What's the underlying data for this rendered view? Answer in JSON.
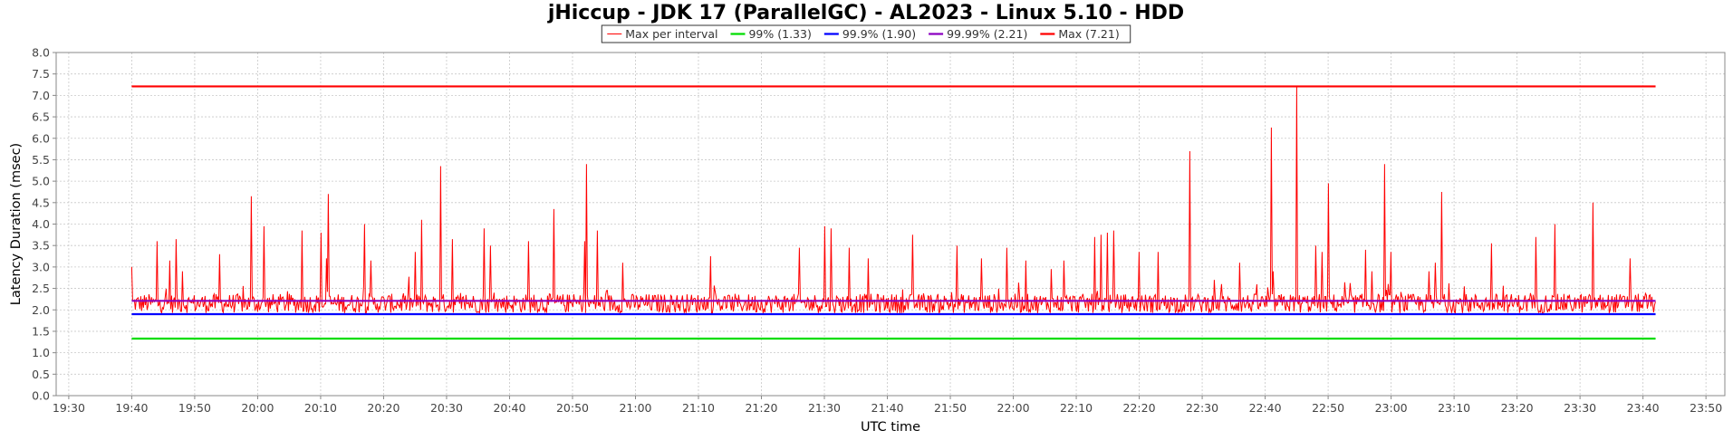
{
  "chart_data": {
    "type": "line",
    "title": "jHiccup - JDK 17 (ParallelGC) - AL2023 - Linux 5.10 - HDD",
    "xlabel": "UTC time",
    "ylabel": "Latency Duration (msec)",
    "xlim": [
      "19:28",
      "23:53"
    ],
    "ylim": [
      0,
      8
    ],
    "yticks": [
      "0.0",
      "0.5",
      "1.0",
      "1.5",
      "2.0",
      "2.5",
      "3.0",
      "3.5",
      "4.0",
      "4.5",
      "5.0",
      "5.5",
      "6.0",
      "6.5",
      "7.0",
      "7.5",
      "8.0"
    ],
    "xticks": [
      "19:30",
      "19:40",
      "19:50",
      "20:00",
      "20:10",
      "20:20",
      "20:30",
      "20:40",
      "20:50",
      "21:00",
      "21:10",
      "21:20",
      "21:30",
      "21:40",
      "21:50",
      "22:00",
      "22:10",
      "22:20",
      "22:30",
      "22:40",
      "22:50",
      "23:00",
      "23:10",
      "23:20",
      "23:30",
      "23:40",
      "23:50"
    ],
    "grid": true,
    "legend_position": "top-center",
    "series": [
      {
        "name": "Max per interval",
        "color": "#ff0000",
        "baseline": 2.15,
        "noise": 0.45,
        "min": 1.8,
        "x_start": "19:40",
        "x_end": "23:42",
        "spikes": [
          {
            "x": "19:40",
            "y": 3.0
          },
          {
            "x": "19:44",
            "y": 3.6
          },
          {
            "x": "19:46",
            "y": 3.15
          },
          {
            "x": "19:47",
            "y": 3.65
          },
          {
            "x": "19:48",
            "y": 2.9
          },
          {
            "x": "19:54",
            "y": 3.3
          },
          {
            "x": "19:59",
            "y": 4.65
          },
          {
            "x": "20:01",
            "y": 3.95
          },
          {
            "x": "20:07",
            "y": 3.85
          },
          {
            "x": "20:10",
            "y": 3.8
          },
          {
            "x": "20:11",
            "y": 3.2
          },
          {
            "x": "20:11",
            "y": 4.7
          },
          {
            "x": "20:17",
            "y": 4.0
          },
          {
            "x": "20:18",
            "y": 3.15
          },
          {
            "x": "20:25",
            "y": 3.35
          },
          {
            "x": "20:26",
            "y": 4.1
          },
          {
            "x": "20:29",
            "y": 5.35
          },
          {
            "x": "20:31",
            "y": 3.65
          },
          {
            "x": "20:36",
            "y": 3.9
          },
          {
            "x": "20:37",
            "y": 3.5
          },
          {
            "x": "20:43",
            "y": 3.6
          },
          {
            "x": "20:47",
            "y": 4.35
          },
          {
            "x": "20:52",
            "y": 3.6
          },
          {
            "x": "20:52",
            "y": 5.4
          },
          {
            "x": "20:54",
            "y": 3.85
          },
          {
            "x": "20:58",
            "y": 3.1
          },
          {
            "x": "21:12",
            "y": 3.25
          },
          {
            "x": "21:26",
            "y": 3.45
          },
          {
            "x": "21:30",
            "y": 3.95
          },
          {
            "x": "21:31",
            "y": 3.9
          },
          {
            "x": "21:34",
            "y": 3.45
          },
          {
            "x": "21:37",
            "y": 3.2
          },
          {
            "x": "21:44",
            "y": 3.75
          },
          {
            "x": "21:51",
            "y": 3.5
          },
          {
            "x": "21:55",
            "y": 3.2
          },
          {
            "x": "21:59",
            "y": 3.45
          },
          {
            "x": "22:02",
            "y": 3.15
          },
          {
            "x": "22:06",
            "y": 2.95
          },
          {
            "x": "22:08",
            "y": 3.15
          },
          {
            "x": "22:13",
            "y": 3.7
          },
          {
            "x": "22:14",
            "y": 3.75
          },
          {
            "x": "22:15",
            "y": 3.8
          },
          {
            "x": "22:16",
            "y": 3.85
          },
          {
            "x": "22:20",
            "y": 3.35
          },
          {
            "x": "22:23",
            "y": 3.35
          },
          {
            "x": "22:28",
            "y": 5.7
          },
          {
            "x": "22:33",
            "y": 2.6
          },
          {
            "x": "22:36",
            "y": 3.1
          },
          {
            "x": "22:41",
            "y": 6.25
          },
          {
            "x": "22:41",
            "y": 2.9
          },
          {
            "x": "22:45",
            "y": 7.21
          },
          {
            "x": "22:48",
            "y": 3.5
          },
          {
            "x": "22:49",
            "y": 3.35
          },
          {
            "x": "22:50",
            "y": 4.95
          },
          {
            "x": "22:56",
            "y": 3.4
          },
          {
            "x": "22:57",
            "y": 2.9
          },
          {
            "x": "22:59",
            "y": 5.4
          },
          {
            "x": "23:00",
            "y": 3.35
          },
          {
            "x": "23:06",
            "y": 2.9
          },
          {
            "x": "23:07",
            "y": 3.1
          },
          {
            "x": "23:08",
            "y": 4.75
          },
          {
            "x": "23:16",
            "y": 3.55
          },
          {
            "x": "23:23",
            "y": 3.7
          },
          {
            "x": "23:26",
            "y": 4.0
          },
          {
            "x": "23:32",
            "y": 4.5
          },
          {
            "x": "23:38",
            "y": 3.2
          }
        ]
      },
      {
        "name": "99% (1.33)",
        "color": "#00dd00",
        "constant": 1.33,
        "x_start": "19:40",
        "x_end": "23:42"
      },
      {
        "name": "99.9% (1.90)",
        "color": "#0000ff",
        "constant": 1.9,
        "x_start": "19:40",
        "x_end": "23:42"
      },
      {
        "name": "99.99% (2.21)",
        "color": "#8b00c0",
        "constant": 2.21,
        "x_start": "19:40",
        "x_end": "23:42"
      },
      {
        "name": "Max (7.21)",
        "color": "#ff0000",
        "constant": 7.21,
        "x_start": "19:40",
        "x_end": "23:42"
      }
    ]
  }
}
